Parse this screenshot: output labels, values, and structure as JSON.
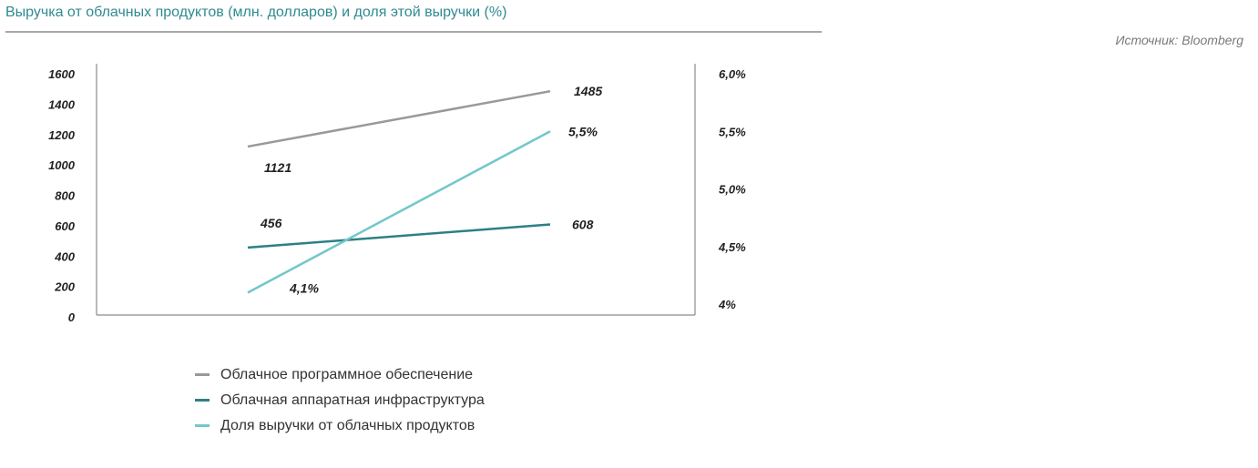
{
  "title": "Выручка от облачных продуктов (млн. долларов) и доля этой выручки (%)",
  "source": "Источник: Bloomberg",
  "colors": {
    "software": "#999999",
    "hardware": "#2e7f86",
    "share": "#72c7cb",
    "axis": "#8c8c8c",
    "title": "#2f8a92"
  },
  "chart_data": {
    "type": "line",
    "x": [
      "",
      ""
    ],
    "y_left": {
      "ticks": [
        "0",
        "200",
        "400",
        "600",
        "800",
        "1000",
        "1200",
        "1400",
        "1600"
      ],
      "range": [
        0,
        1600
      ]
    },
    "y_right": {
      "ticks": [
        "4%",
        "4,5%",
        "5,0%",
        "5,5%",
        "6,0%"
      ],
      "range": [
        4.0,
        6.0
      ]
    },
    "series": [
      {
        "name": "Облачное программное обеспечение",
        "axis": "left",
        "color": "#999999",
        "values": [
          1121,
          1485
        ],
        "labels": [
          "1121",
          "1485"
        ]
      },
      {
        "name": "Облачная аппаратная инфраструктура",
        "axis": "left",
        "color": "#2e7f86",
        "values": [
          456,
          608
        ],
        "labels": [
          "456",
          "608"
        ]
      },
      {
        "name": "Доля выручки от облачных продуктов",
        "axis": "right",
        "color": "#72c7cb",
        "values": [
          4.1,
          5.5
        ],
        "labels": [
          "4,1%",
          "5,5%"
        ]
      }
    ],
    "legend_position": "bottom-left",
    "grid": false
  }
}
